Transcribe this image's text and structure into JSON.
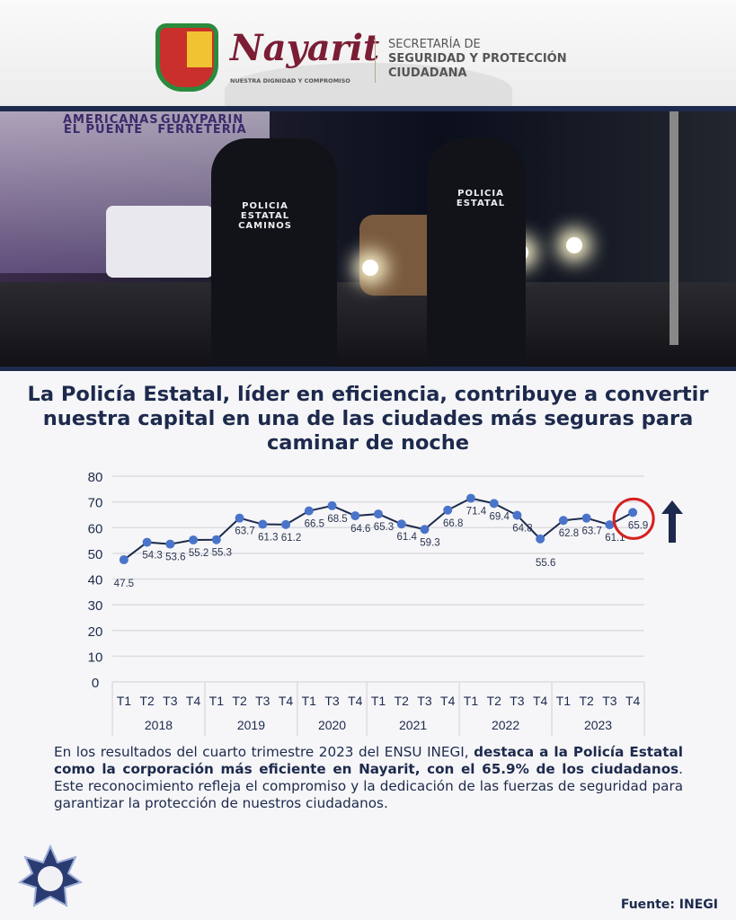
{
  "header": {
    "brand": "Nayarit",
    "tagline": "NUESTRA DIGNIDAD Y COMPROMISO",
    "secretaria_lines": [
      "SECRETARÍA DE",
      "SEGURIDAD Y PROTECCIÓN",
      "CIUDADANA"
    ]
  },
  "photo": {
    "officer_left_label": "POLICIA ESTATAL CAMINOS",
    "officer_right_label": "POLICIA ESTATAL",
    "sign_left": "AMERICANAS EL PUENTE",
    "sign_right": "GUAYPARIN FERRETERIA"
  },
  "headline": "La Policía Estatal, líder en eficiencia, contribuye a convertir nuestra capital en una de las ciudades más seguras para caminar de noche",
  "chart_data": {
    "type": "line",
    "title": "",
    "xlabel": "",
    "ylabel": "",
    "ylim": [
      0,
      80
    ],
    "yticks": [
      0,
      10,
      20,
      30,
      40,
      50,
      60,
      70,
      80
    ],
    "grid": true,
    "legend": "none",
    "line_color": "#1d2a4d",
    "marker_color": "#4a74c9",
    "highlight_color": "#d62020",
    "highlight_index": 22,
    "trend_arrow": "up",
    "groups": [
      {
        "year": "2018",
        "quarters": [
          "T1",
          "T2",
          "T3",
          "T4"
        ]
      },
      {
        "year": "2019",
        "quarters": [
          "T1",
          "T2",
          "T3",
          "T4"
        ]
      },
      {
        "year": "2020",
        "quarters": [
          "T1",
          "T3",
          "T4"
        ]
      },
      {
        "year": "2021",
        "quarters": [
          "T1",
          "T2",
          "T3",
          "T4"
        ]
      },
      {
        "year": "2022",
        "quarters": [
          "T1",
          "T2",
          "T3",
          "T4"
        ]
      },
      {
        "year": "2023",
        "quarters": [
          "T1",
          "T2",
          "T3",
          "T4"
        ]
      }
    ],
    "values": [
      47.5,
      54.3,
      53.6,
      55.2,
      55.3,
      63.7,
      61.3,
      61.2,
      66.5,
      68.5,
      64.6,
      65.3,
      61.4,
      59.3,
      66.8,
      71.4,
      69.4,
      64.8,
      55.6,
      62.8,
      63.7,
      61.1,
      65.9
    ],
    "labels": [
      "47.5",
      "54.3",
      "53.6",
      "55.2",
      "55.3",
      "63.7",
      "61.3",
      "61.2",
      "66.5",
      "68.5",
      "64.6",
      "65.3",
      "61.4",
      "59.3",
      "66.8",
      "71.4",
      "69.4",
      "64.8",
      "55.6",
      "62.8",
      "63.7",
      "61.1",
      "65.9"
    ]
  },
  "paragraph": {
    "part1": "En los resultados del cuarto trimestre 2023 del ENSU INEGI, ",
    "bold": "destaca a la Policía Estatal como la corporación más eficiente en Nayarit, con el 65.9% de los ciudadanos",
    "part2": ". Este reconocimiento refleja el compromiso y la dedicación de las fuerzas de seguridad para garantizar la protección de nuestros ciudadanos."
  },
  "source": "Fuente: INEGI"
}
